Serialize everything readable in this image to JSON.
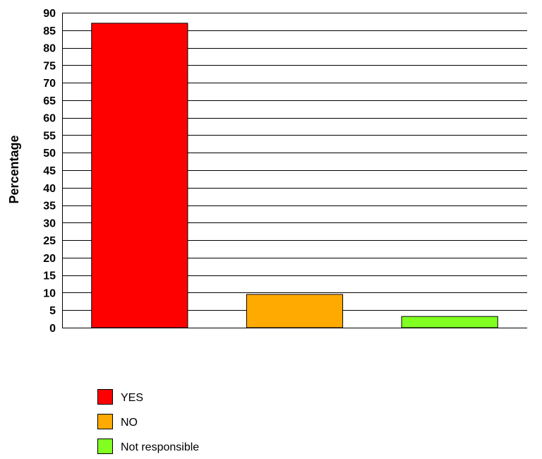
{
  "chart_data": {
    "type": "bar",
    "categories": [
      "YES",
      "NO",
      "Not responsible"
    ],
    "values": [
      87,
      9.5,
      3.2
    ],
    "title": "",
    "xlabel": "",
    "ylabel": "Percentage",
    "ylim": [
      0,
      90
    ],
    "ytick_step": 5,
    "grid": true,
    "legend_position": "bottom-left",
    "colors": [
      "#ff0000",
      "#ffaa00",
      "#80ff20"
    ]
  }
}
